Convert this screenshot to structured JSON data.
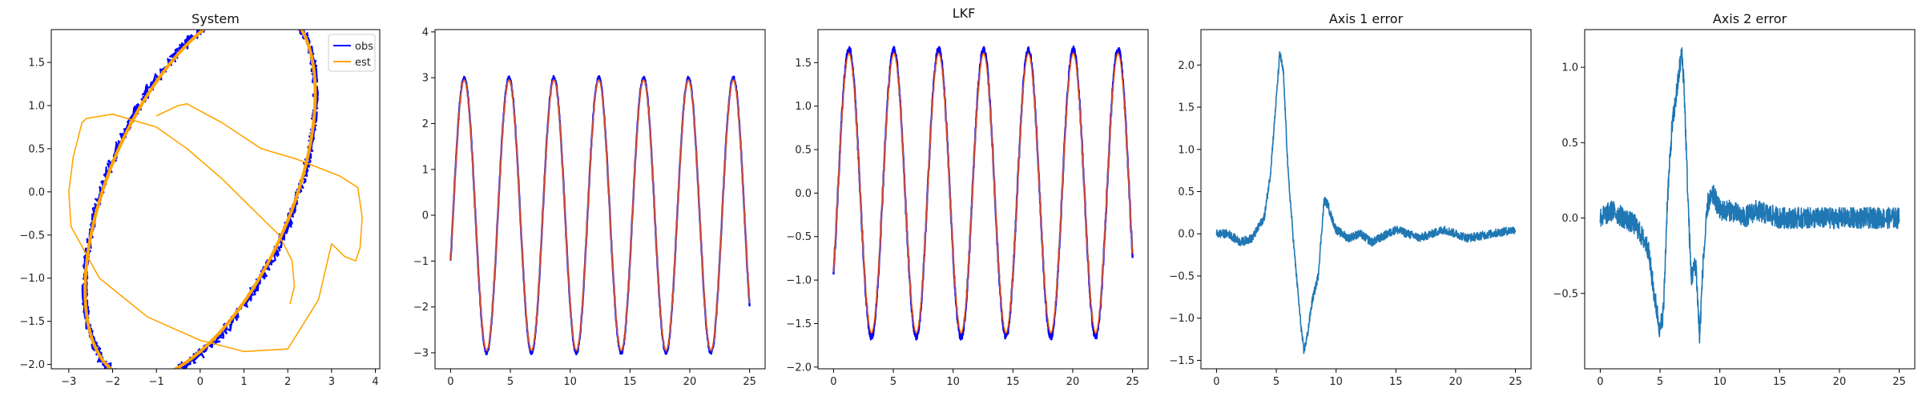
{
  "suptitle": "LKF",
  "colors": {
    "obs": "#0000ff",
    "est": "#ffa500",
    "err": "#1f77b4",
    "truth": "#d62728"
  },
  "chart_data": [
    {
      "type": "line",
      "title": "System",
      "xlim": [
        -3.4,
        4.1
      ],
      "ylim": [
        -2.05,
        1.88
      ],
      "xticks": [
        -3,
        -2,
        -1,
        0,
        1,
        2,
        3,
        4
      ],
      "yticks": [
        -2.0,
        -1.5,
        -1.0,
        -0.5,
        0.0,
        0.5,
        1.0,
        1.5
      ],
      "legend": {
        "placement": "top-right",
        "entries": [
          "obs",
          "est"
        ]
      },
      "series": [
        {
          "name": "obs",
          "kind": "ellipse",
          "center": [
            0,
            0
          ],
          "rx": 3.0,
          "ry": 1.65,
          "tilt": 35
        },
        {
          "name": "est",
          "kind": "ellipse",
          "center": [
            0,
            0
          ],
          "rx": 3.0,
          "ry": 1.62,
          "tilt": 35
        },
        {
          "name": "est",
          "kind": "transient",
          "x": [
            -1.0,
            -0.5,
            -0.3,
            0.5,
            1.4,
            2.2,
            3.2,
            3.6,
            3.7,
            3.65,
            3.55,
            3.3,
            3.0,
            2.7,
            2.0,
            1.0,
            0.0,
            -1.2,
            -2.3,
            -2.95,
            -3.0,
            -2.9,
            -2.8,
            -2.7,
            -2.6,
            -2.0,
            -1.0,
            -0.3,
            0.5,
            1.2,
            1.8,
            2.1,
            2.15,
            2.05
          ],
          "y": [
            0.88,
            1.0,
            1.02,
            0.8,
            0.5,
            0.38,
            0.18,
            0.05,
            -0.3,
            -0.65,
            -0.8,
            -0.75,
            -0.6,
            -1.25,
            -1.82,
            -1.85,
            -1.72,
            -1.45,
            -1.0,
            -0.4,
            0.0,
            0.4,
            0.6,
            0.8,
            0.85,
            0.9,
            0.75,
            0.5,
            0.15,
            -0.2,
            -0.5,
            -0.8,
            -1.1,
            -1.3
          ]
        }
      ]
    },
    {
      "type": "line",
      "title": "",
      "xlim": [
        -1.3,
        26.3
      ],
      "ylim": [
        -3.35,
        4.05
      ],
      "xticks": [
        0,
        5,
        10,
        15,
        20,
        25
      ],
      "yticks": [
        -3,
        -2,
        -1,
        0,
        1,
        2,
        3,
        4
      ],
      "series": [
        {
          "name": "obs",
          "amplitude": 3.0,
          "period": 3.75,
          "phase": -0.34,
          "t_end": 25
        },
        {
          "name": "est",
          "amplitude": 2.95,
          "period": 3.75,
          "phase": -0.34,
          "t_end": 25
        }
      ]
    },
    {
      "type": "line",
      "title": "",
      "xlim": [
        -1.3,
        26.3
      ],
      "ylim": [
        -2.02,
        1.88
      ],
      "xticks": [
        0,
        5,
        10,
        15,
        20,
        25
      ],
      "yticks": [
        -2.0,
        -1.5,
        -1.0,
        -0.5,
        0.0,
        0.5,
        1.0,
        1.5
      ],
      "series": [
        {
          "name": "obs",
          "amplitude": 1.65,
          "period": 3.75,
          "phase": -0.6,
          "t_end": 25
        },
        {
          "name": "est",
          "amplitude": 1.6,
          "period": 3.75,
          "phase": -0.6,
          "t_end": 25
        }
      ]
    },
    {
      "type": "line",
      "title": "Axis 1 error",
      "xlim": [
        -1.3,
        26.3
      ],
      "ylim": [
        -1.6,
        2.42
      ],
      "xticks": [
        0,
        5,
        10,
        15,
        20,
        25
      ],
      "yticks": [
        -1.5,
        -1.0,
        -0.5,
        0.0,
        0.5,
        1.0,
        1.5,
        2.0
      ],
      "series": [
        {
          "x": [
            0,
            1,
            2,
            3,
            4,
            4.5,
            5,
            5.3,
            5.6,
            6.0,
            6.5,
            7.0,
            7.3,
            7.6,
            8.0,
            8.5,
            9.0,
            9.3,
            9.6,
            10,
            11,
            12,
            13,
            15,
            17,
            19,
            21,
            23,
            25
          ],
          "y": [
            0.0,
            0.0,
            -0.1,
            -0.05,
            0.2,
            0.7,
            1.6,
            2.15,
            1.9,
            0.7,
            -0.2,
            -1.0,
            -1.4,
            -1.2,
            -0.8,
            -0.5,
            0.4,
            0.35,
            0.2,
            0.05,
            -0.05,
            0.0,
            -0.1,
            0.05,
            -0.05,
            0.05,
            -0.05,
            0.0,
            0.05
          ]
        }
      ]
    },
    {
      "type": "line",
      "title": "Axis 2 error",
      "xlim": [
        -1.3,
        26.3
      ],
      "ylim": [
        -1.0,
        1.25
      ],
      "xticks": [
        0,
        5,
        10,
        15,
        20,
        25
      ],
      "yticks": [
        -0.5,
        0.0,
        0.5,
        1.0
      ],
      "series": [
        {
          "x": [
            0,
            1,
            2,
            3,
            4,
            4.5,
            5,
            5.3,
            5.6,
            6.0,
            6.5,
            6.8,
            7.0,
            7.3,
            7.6,
            8.0,
            8.3,
            8.6,
            9.0,
            9.5,
            10,
            11,
            12,
            13,
            15,
            17,
            19,
            21,
            23,
            25
          ],
          "y": [
            0.0,
            0.05,
            0.0,
            -0.05,
            -0.2,
            -0.5,
            -0.75,
            -0.6,
            0.1,
            0.6,
            0.9,
            1.1,
            0.9,
            0.2,
            -0.4,
            -0.3,
            -0.8,
            -0.3,
            0.1,
            0.15,
            0.05,
            0.05,
            0.0,
            0.05,
            0.0,
            0.0,
            0.0,
            0.0,
            0.0,
            0.0
          ]
        }
      ]
    }
  ]
}
